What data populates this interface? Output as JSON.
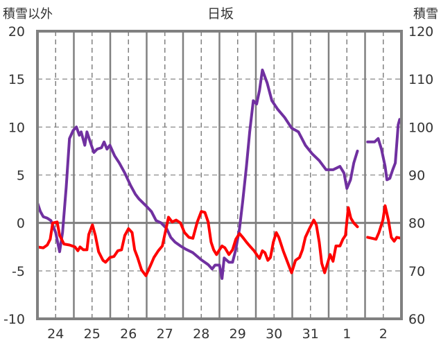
{
  "chart_data": {
    "type": "line",
    "title": "日坂",
    "ylabel_left": "積雪以外",
    "ylabel_right": "積雪",
    "ylim_left": [
      -10,
      20
    ],
    "ylim_right": [
      60,
      120
    ],
    "yticks_left": [
      "20",
      "15",
      "10",
      "5",
      "0",
      "-5",
      "-10"
    ],
    "yticks_left_values": [
      20,
      15,
      10,
      5,
      0,
      -5,
      -10
    ],
    "yticks_right": [
      "120",
      "110",
      "100",
      "90",
      "80",
      "70",
      "60"
    ],
    "yticks_right_values": [
      120,
      110,
      100,
      90,
      80,
      70,
      60
    ],
    "xlim": [
      -0.5,
      9.5
    ],
    "xticks": [
      "24",
      "25",
      "26",
      "27",
      "28",
      "29",
      "30",
      "31",
      "1",
      "2"
    ],
    "grid": true,
    "series": [
      {
        "axis": "right",
        "color": "#7030A0",
        "points": [
          [
            -0.5,
            84.2
          ],
          [
            -0.42,
            82.4
          ],
          [
            -0.34,
            81.3
          ],
          [
            -0.23,
            81
          ],
          [
            -0.13,
            80.5
          ],
          [
            0,
            78
          ],
          [
            0.11,
            74
          ],
          [
            0.19,
            78
          ],
          [
            0.29,
            87.5
          ],
          [
            0.38,
            97.6
          ],
          [
            0.48,
            99.3
          ],
          [
            0.57,
            100
          ],
          [
            0.65,
            98.3
          ],
          [
            0.7,
            99
          ],
          [
            0.8,
            96.2
          ],
          [
            0.86,
            99
          ],
          [
            0.95,
            96.9
          ],
          [
            1.05,
            94.7
          ],
          [
            1.14,
            95.4
          ],
          [
            1.26,
            95.7
          ],
          [
            1.33,
            96.9
          ],
          [
            1.41,
            95.4
          ],
          [
            1.49,
            96.2
          ],
          [
            1.62,
            94
          ],
          [
            1.75,
            92.5
          ],
          [
            1.9,
            90.4
          ],
          [
            2.06,
            87.8
          ],
          [
            2.19,
            86
          ],
          [
            2.29,
            85
          ],
          [
            2.48,
            83.6
          ],
          [
            2.63,
            82.4
          ],
          [
            2.76,
            80.5
          ],
          [
            2.9,
            80
          ],
          [
            3.05,
            78.8
          ],
          [
            3.16,
            77
          ],
          [
            3.28,
            76
          ],
          [
            3.43,
            75.2
          ],
          [
            3.58,
            74.5
          ],
          [
            3.77,
            73.8
          ],
          [
            4.0,
            72.3
          ],
          [
            4.19,
            71.3
          ],
          [
            4.3,
            70.4
          ],
          [
            4.38,
            71.2
          ],
          [
            4.5,
            71.2
          ],
          [
            4.57,
            68.4
          ],
          [
            4.63,
            72.7
          ],
          [
            4.76,
            71.8
          ],
          [
            4.86,
            71.8
          ],
          [
            4.95,
            74.5
          ],
          [
            5.05,
            78.8
          ],
          [
            5.14,
            84.6
          ],
          [
            5.24,
            91.8
          ],
          [
            5.33,
            99
          ],
          [
            5.43,
            105.5
          ],
          [
            5.52,
            104.8
          ],
          [
            5.6,
            107.7
          ],
          [
            5.68,
            111.9
          ],
          [
            5.81,
            109.2
          ],
          [
            5.94,
            105.5
          ],
          [
            6.1,
            103.7
          ],
          [
            6.29,
            102
          ],
          [
            6.48,
            99.8
          ],
          [
            6.67,
            99
          ],
          [
            6.86,
            96.2
          ],
          [
            7.05,
            94.4
          ],
          [
            7.24,
            93
          ],
          [
            7.43,
            91.1
          ],
          [
            7.62,
            91.1
          ],
          [
            7.81,
            91.8
          ],
          [
            7.92,
            90.4
          ],
          [
            8.0,
            87.2
          ],
          [
            8.1,
            89
          ],
          [
            8.19,
            92.5
          ],
          [
            8.29,
            95
          ],
          null,
          [
            8.57,
            96.9
          ],
          [
            8.76,
            96.9
          ],
          [
            8.86,
            97.6
          ],
          [
            8.95,
            95.4
          ],
          [
            9.05,
            91.8
          ],
          [
            9.1,
            89
          ],
          [
            9.18,
            89.3
          ],
          [
            9.26,
            91.1
          ],
          [
            9.33,
            92.5
          ],
          [
            9.41,
            100.5
          ],
          [
            9.45,
            101.6
          ],
          [
            9.5,
            100.8
          ]
        ]
      },
      {
        "axis": "left",
        "color": "#FF0000",
        "points": [
          [
            -0.5,
            -2.5
          ],
          [
            -0.34,
            -2.6
          ],
          [
            -0.23,
            -2.3
          ],
          [
            -0.15,
            -1.7
          ],
          [
            -0.08,
            0
          ],
          [
            0.04,
            0.1
          ],
          [
            0.11,
            -1.3
          ],
          [
            0.23,
            -2.2
          ],
          [
            0.38,
            -2.3
          ],
          [
            0.53,
            -2.5
          ],
          [
            0.61,
            -2.9
          ],
          [
            0.67,
            -2.5
          ],
          [
            0.76,
            -2.8
          ],
          [
            0.86,
            -2.8
          ],
          [
            0.91,
            -1.2
          ],
          [
            1.01,
            -0.2
          ],
          [
            1.09,
            -1.3
          ],
          [
            1.18,
            -3
          ],
          [
            1.3,
            -3.9
          ],
          [
            1.37,
            -4.1
          ],
          [
            1.49,
            -3.6
          ],
          [
            1.6,
            -3.5
          ],
          [
            1.71,
            -2.9
          ],
          [
            1.81,
            -2.8
          ],
          [
            1.9,
            -1.3
          ],
          [
            2.0,
            -0.6
          ],
          [
            2.1,
            -1
          ],
          [
            2.17,
            -2.8
          ],
          [
            2.25,
            -3.6
          ],
          [
            2.36,
            -4.9
          ],
          [
            2.48,
            -5.5
          ],
          [
            2.55,
            -4.9
          ],
          [
            2.61,
            -4.4
          ],
          [
            2.7,
            -3.6
          ],
          [
            2.82,
            -2.9
          ],
          [
            2.93,
            -2.4
          ],
          [
            3.01,
            -1
          ],
          [
            3.1,
            0.6
          ],
          [
            3.2,
            0.1
          ],
          [
            3.31,
            0.3
          ],
          [
            3.43,
            0
          ],
          [
            3.54,
            -1
          ],
          [
            3.66,
            -1.5
          ],
          [
            3.77,
            -1.6
          ],
          [
            3.89,
            0.1
          ],
          [
            4.0,
            1.2
          ],
          [
            4.1,
            1.1
          ],
          [
            4.19,
            0.1
          ],
          [
            4.27,
            -2
          ],
          [
            4.34,
            -2.8
          ],
          [
            4.42,
            -3.3
          ],
          [
            4.5,
            -2.8
          ],
          [
            4.57,
            -2.4
          ],
          [
            4.65,
            -2.6
          ],
          [
            4.76,
            -3.3
          ],
          [
            4.86,
            -2.8
          ],
          [
            4.95,
            -1.7
          ],
          [
            5.05,
            -1.1
          ],
          [
            5.14,
            -1.5
          ],
          [
            5.24,
            -2
          ],
          [
            5.33,
            -2.4
          ],
          [
            5.45,
            -2.9
          ],
          [
            5.52,
            -3.3
          ],
          [
            5.6,
            -3.7
          ],
          [
            5.68,
            -2.9
          ],
          [
            5.75,
            -3.1
          ],
          [
            5.83,
            -3.9
          ],
          [
            5.9,
            -3.6
          ],
          [
            5.98,
            -2
          ],
          [
            6.06,
            -1
          ],
          [
            6.13,
            -1.5
          ],
          [
            6.25,
            -2.9
          ],
          [
            6.32,
            -3.6
          ],
          [
            6.48,
            -5.2
          ],
          [
            6.59,
            -3.9
          ],
          [
            6.7,
            -3.6
          ],
          [
            6.78,
            -2.8
          ],
          [
            6.86,
            -1.5
          ],
          [
            6.97,
            -0.6
          ],
          [
            7.09,
            0.3
          ],
          [
            7.16,
            -0.2
          ],
          [
            7.24,
            -2
          ],
          [
            7.31,
            -4.2
          ],
          [
            7.39,
            -5.2
          ],
          [
            7.47,
            -4.2
          ],
          [
            7.54,
            -3.3
          ],
          [
            7.62,
            -4
          ],
          [
            7.7,
            -2.4
          ],
          [
            7.81,
            -2.4
          ],
          [
            7.89,
            -1.7
          ],
          [
            7.96,
            -1.3
          ],
          [
            8.04,
            1.6
          ],
          [
            8.11,
            0.5
          ],
          [
            8.19,
            0
          ],
          [
            8.29,
            -0.4
          ],
          null,
          [
            8.57,
            -1.5
          ],
          [
            8.69,
            -1.6
          ],
          [
            8.8,
            -1.7
          ],
          [
            8.88,
            -1
          ],
          [
            8.99,
            0.3
          ],
          [
            9.05,
            1.8
          ],
          [
            9.14,
            0.3
          ],
          [
            9.22,
            -1.5
          ],
          [
            9.3,
            -1.9
          ],
          [
            9.37,
            -1.5
          ],
          [
            9.49,
            -1.6
          ]
        ]
      }
    ]
  }
}
